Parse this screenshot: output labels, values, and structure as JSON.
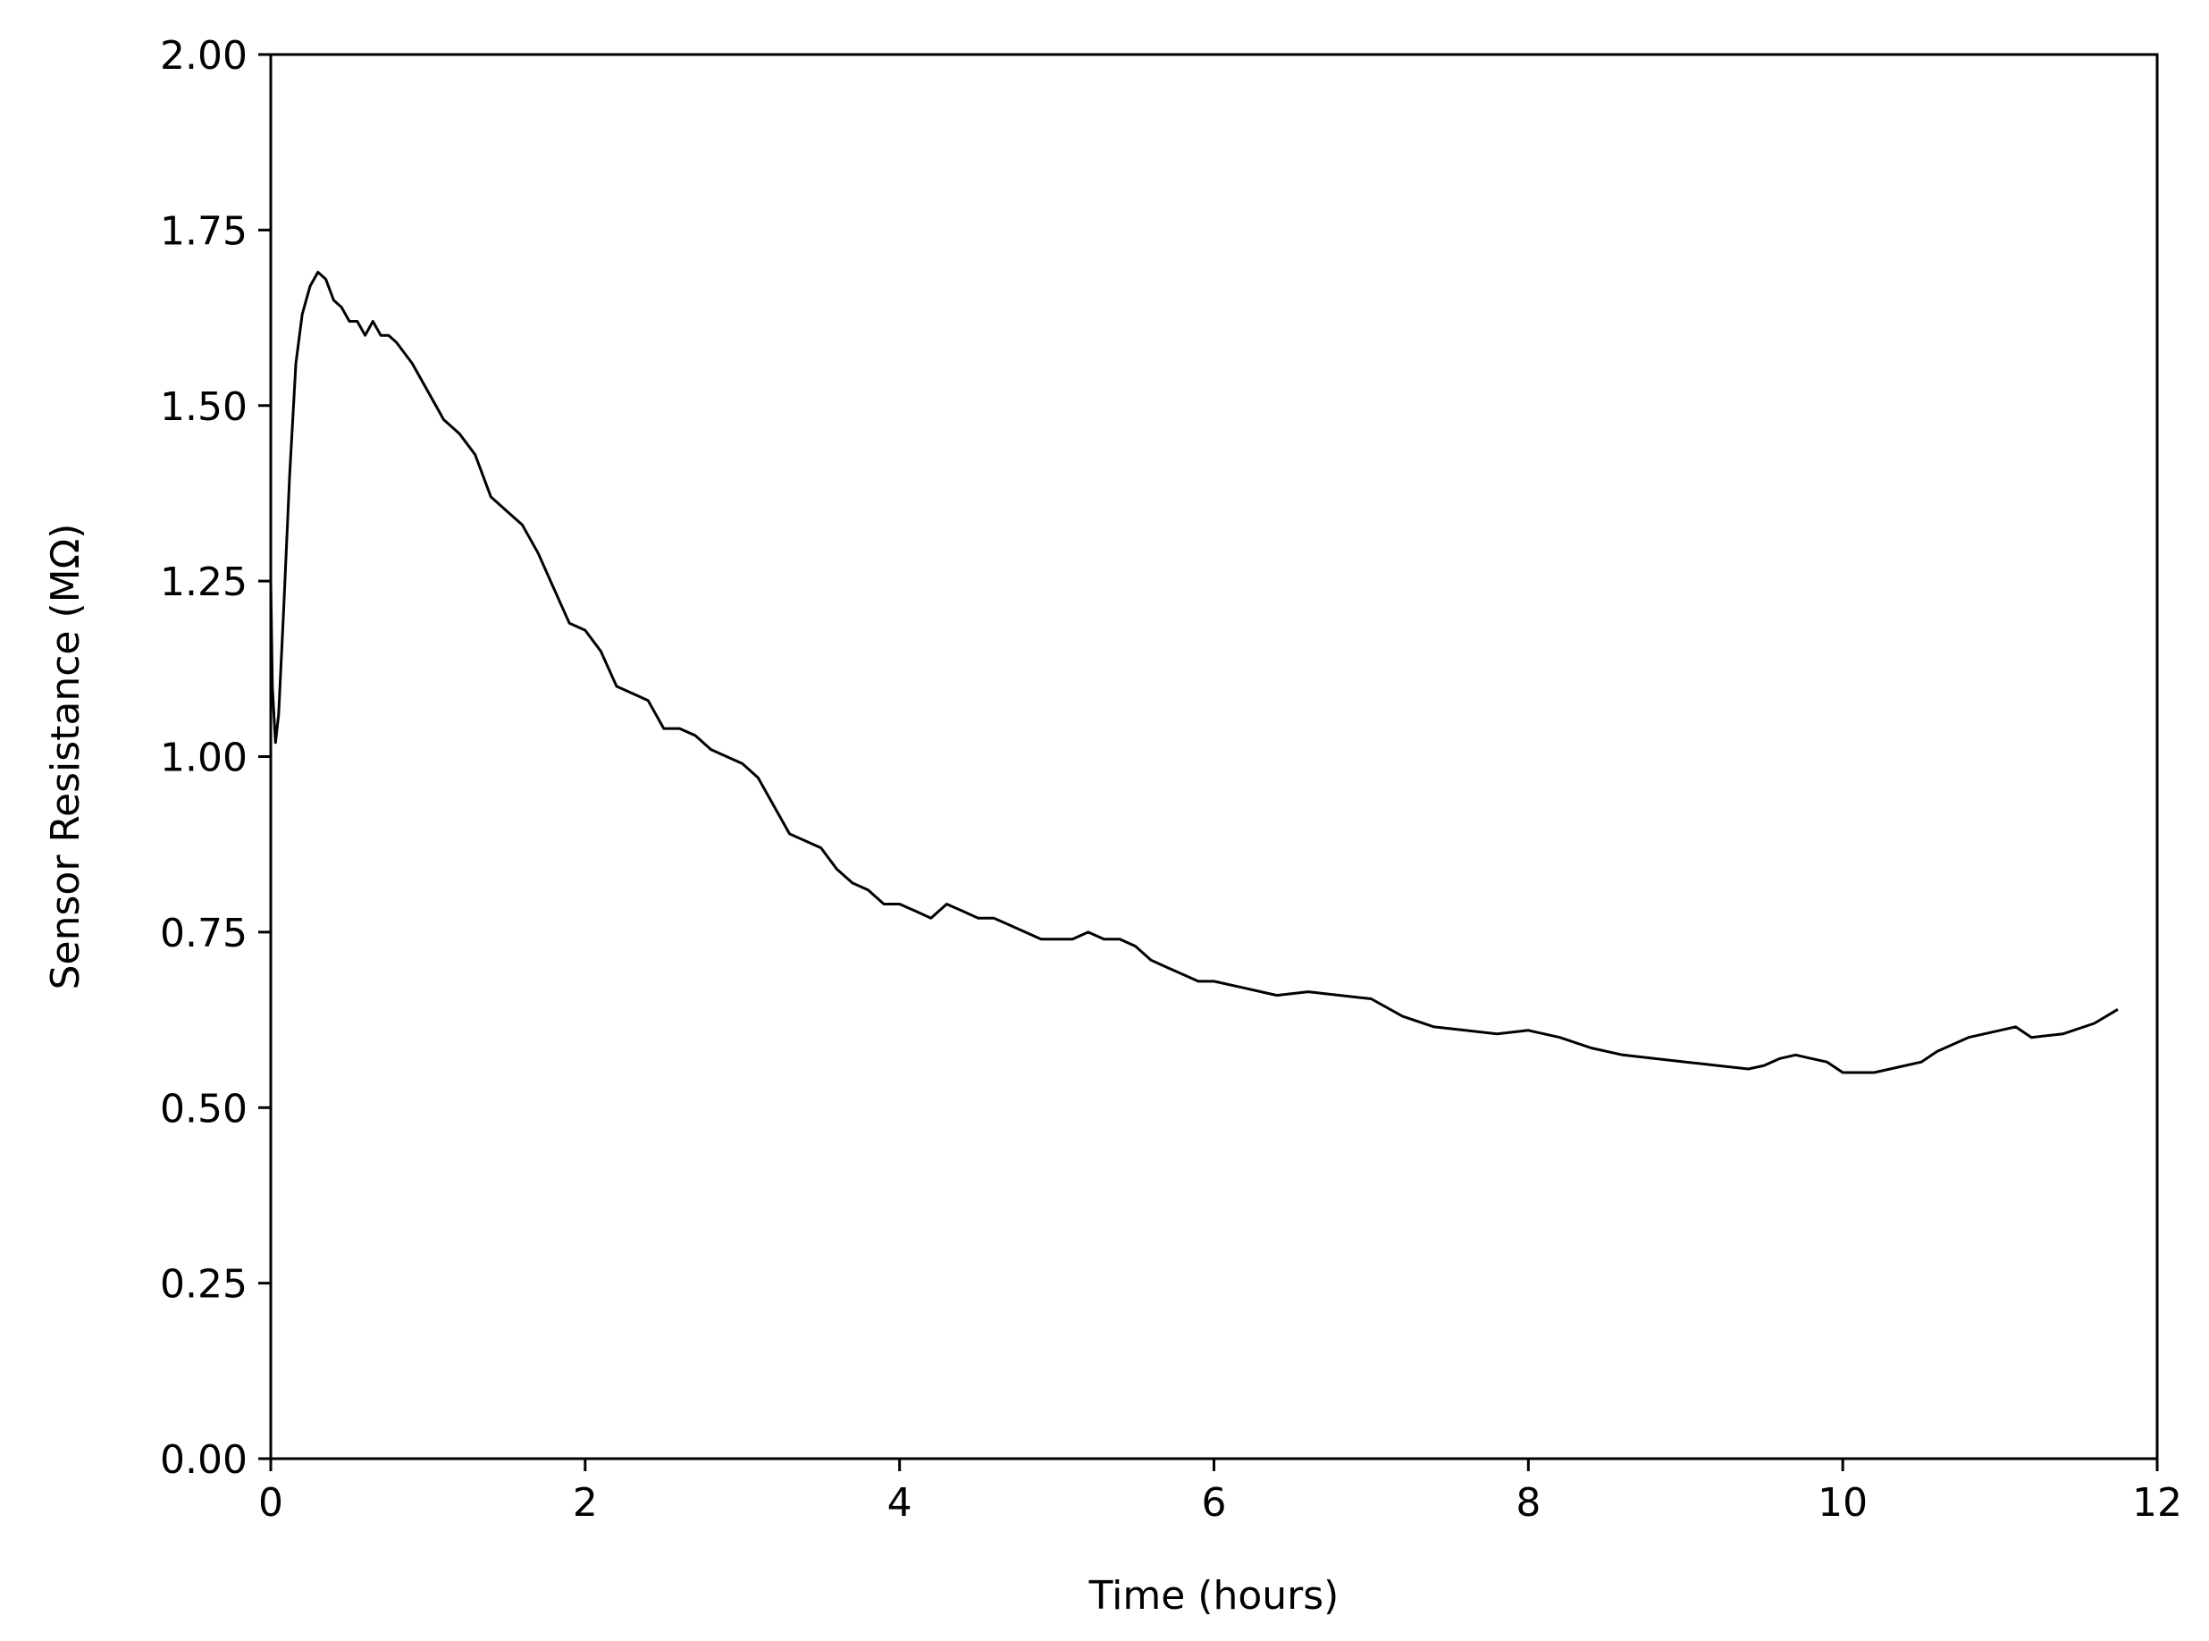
{
  "chart_data": {
    "type": "line",
    "title": "",
    "xlabel": "Time (hours)",
    "ylabel": "Sensor Resistance (MΩ)",
    "xlim": [
      0,
      12
    ],
    "ylim": [
      0,
      2
    ],
    "xticks": [
      0,
      2,
      4,
      6,
      8,
      10,
      12
    ],
    "xtick_labels": [
      "0",
      "2",
      "4",
      "6",
      "8",
      "10",
      "12"
    ],
    "yticks": [
      0,
      0.25,
      0.5,
      0.75,
      1.0,
      1.25,
      1.5,
      1.75,
      2.0
    ],
    "ytick_labels": [
      "0.00",
      "0.25",
      "0.50",
      "0.75",
      "1.00",
      "1.25",
      "1.50",
      "1.75",
      "2.00"
    ],
    "grid": false,
    "legend": "none",
    "series": [
      {
        "color": "#000000",
        "x": [
          0,
          0.01,
          0.03,
          0.05,
          0.08,
          0.12,
          0.16,
          0.2,
          0.25,
          0.3,
          0.35,
          0.4,
          0.45,
          0.5,
          0.55,
          0.6,
          0.65,
          0.7,
          0.75,
          0.8,
          0.9,
          1.0,
          1.1,
          1.2,
          1.3,
          1.4,
          1.5,
          1.6,
          1.7,
          1.8,
          1.9,
          2.0,
          2.1,
          2.2,
          2.3,
          2.4,
          2.5,
          2.6,
          2.7,
          2.8,
          2.9,
          3.0,
          3.1,
          3.2,
          3.3,
          3.4,
          3.5,
          3.6,
          3.7,
          3.8,
          3.9,
          4.0,
          4.1,
          4.2,
          4.3,
          4.4,
          4.5,
          4.6,
          4.7,
          4.8,
          4.9,
          5.0,
          5.1,
          5.2,
          5.3,
          5.4,
          5.5,
          5.6,
          5.7,
          5.8,
          5.9,
          6.0,
          6.2,
          6.4,
          6.6,
          6.8,
          7.0,
          7.2,
          7.4,
          7.6,
          7.8,
          8.0,
          8.2,
          8.4,
          8.6,
          8.8,
          9.0,
          9.2,
          9.4,
          9.5,
          9.6,
          9.7,
          9.8,
          9.9,
          10.0,
          10.2,
          10.4,
          10.5,
          10.6,
          10.8,
          11.0,
          11.1,
          11.2,
          11.4,
          11.6,
          11.75
        ],
        "y": [
          1.25,
          1.1,
          1.02,
          1.06,
          1.2,
          1.4,
          1.56,
          1.63,
          1.67,
          1.69,
          1.68,
          1.65,
          1.64,
          1.62,
          1.62,
          1.6,
          1.62,
          1.6,
          1.6,
          1.59,
          1.56,
          1.52,
          1.48,
          1.46,
          1.43,
          1.37,
          1.35,
          1.33,
          1.29,
          1.24,
          1.19,
          1.18,
          1.15,
          1.1,
          1.09,
          1.08,
          1.04,
          1.04,
          1.03,
          1.01,
          1.0,
          0.99,
          0.97,
          0.93,
          0.89,
          0.88,
          0.87,
          0.84,
          0.82,
          0.81,
          0.79,
          0.79,
          0.78,
          0.77,
          0.79,
          0.78,
          0.77,
          0.77,
          0.76,
          0.75,
          0.74,
          0.74,
          0.74,
          0.75,
          0.74,
          0.74,
          0.73,
          0.71,
          0.7,
          0.69,
          0.68,
          0.68,
          0.67,
          0.66,
          0.665,
          0.66,
          0.655,
          0.63,
          0.615,
          0.61,
          0.605,
          0.61,
          0.6,
          0.585,
          0.575,
          0.57,
          0.565,
          0.56,
          0.555,
          0.56,
          0.57,
          0.575,
          0.57,
          0.565,
          0.55,
          0.55,
          0.56,
          0.565,
          0.58,
          0.6,
          0.61,
          0.615,
          0.6,
          0.605,
          0.62,
          0.64
        ]
      }
    ]
  }
}
